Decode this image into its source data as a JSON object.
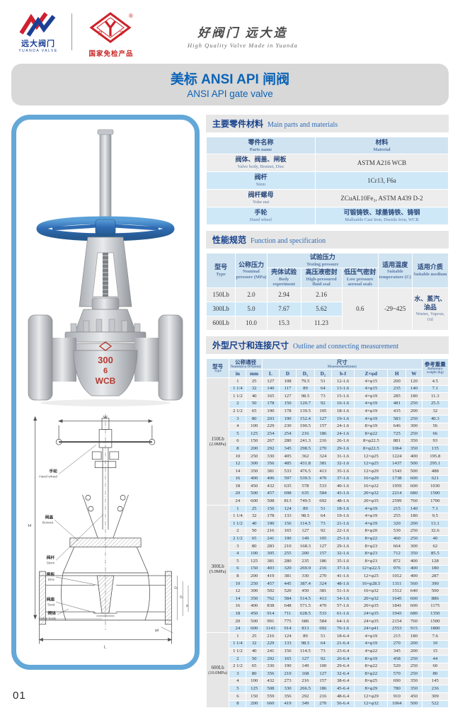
{
  "colors": {
    "panel_border": "#64a8d8",
    "accent_blue": "#0b63b6",
    "brand_red": "#cc2229",
    "navy": "#16418c",
    "table_header_blue": "#cfe3f1",
    "row_blue": "#cfe8f8",
    "row_grey": "#ededed"
  },
  "page": {
    "number": "01"
  },
  "header": {
    "yuanda_logo": {
      "name_cn": "远大阀门",
      "name_en": "YUANDA VALVE"
    },
    "trademark": {
      "registered": "®",
      "left_char": "兑",
      "right_char": "宇",
      "badge": "国家免检产品"
    },
    "slogan_cn": "好阀门 远大造",
    "slogan_en": "High Quality Valve Made in Yuanda"
  },
  "title": {
    "cn": "美标 ANSI API 闸阀",
    "en": "ANSI API gate valve"
  },
  "photo": {
    "marking_line1": "300",
    "marking_line2": "6",
    "marking_line3": "WCB",
    "yoke_mark1": "6",
    "yoke_mark2": "WCB"
  },
  "drawing": {
    "labels": [
      {
        "cn": "手轮",
        "en": "Hand wheel"
      },
      {
        "cn": "阀盖",
        "en": "Bonnet"
      },
      {
        "cn": "阀杆",
        "en": "Stem"
      },
      {
        "cn": "闸板",
        "en": "Disc"
      },
      {
        "cn": "阀座",
        "en": "Seat"
      },
      {
        "cn": "阀体",
        "en": "Valve body"
      }
    ],
    "dims": {
      "h": "H",
      "w": "W",
      "l": "L",
      "d": "D",
      "d1": "D₁",
      "d2": "D₂",
      "phid": "φd"
    }
  },
  "sections": {
    "materials": {
      "cn": "主要零件材料",
      "en": "Main parts and materials"
    },
    "spec": {
      "cn": "性能规范",
      "en": "Function and specification"
    },
    "outline": {
      "cn": "外型尺寸和连接尺寸",
      "en": "Outline and connecting measurement"
    }
  },
  "materials_table": {
    "part_header_cn": "零件名称",
    "part_header_en": "Parts name",
    "mat_header_cn": "材料",
    "mat_header_en": "Material",
    "rows": [
      {
        "part_cn": "阀体、阀盖、闸板",
        "part_en": "Valve body, Bonnet, Disc",
        "mat_cn": "ASTM A216 WCB",
        "mat_en": ""
      },
      {
        "part_cn": "阀杆",
        "part_en": "Stem",
        "mat_cn": "1Cr13, F6a",
        "mat_en": ""
      },
      {
        "part_cn": "阀杆螺母",
        "part_en": "Yoke nut",
        "mat_cn": "ZCuAL10Fe₃, ASTM A439 D-2",
        "mat_en": ""
      },
      {
        "part_cn": "手轮",
        "part_en": "Hand wheel",
        "mat_cn": "可锻铸铁、球墨铸铁、铸钢",
        "mat_en": "Malleable Cast Iron, Ductile Iron, WCB"
      }
    ]
  },
  "spec_table": {
    "type_cn": "型号",
    "type_en": "Type",
    "pn_cn": "公称压力",
    "pn_en": "Nominal pressure (MPa)",
    "test_cn": "试验压力",
    "test_en": "Testing pressure",
    "body_cn": "壳体试验",
    "body_en": "Body experiment",
    "high_cn": "高压液密封",
    "high_en": "High-pressured fluid seal",
    "low_cn": "低压气密封",
    "low_en": "Low pressure aerosol seals",
    "temp_cn": "适用温度",
    "temp_en": "Suitable temperature (C)",
    "medium_cn": "适用介质",
    "medium_en": "Suitable medium",
    "rows": [
      {
        "type": "150Lb",
        "pn": "2.0",
        "body": "2.94",
        "high": "2.16"
      },
      {
        "type": "300Lb",
        "pn": "5.0",
        "body": "7.67",
        "high": "5.62"
      },
      {
        "type": "600Lb",
        "pn": "10.0",
        "body": "15.3",
        "high": "11.23"
      }
    ],
    "low_pressure": "0.6",
    "temperature": "-29~425",
    "medium_value_cn": "水、蒸汽、油品",
    "medium_value_en": "Warter, Vapour, Oil"
  },
  "outline_table": {
    "type_cn": "型号",
    "type_en": "Type",
    "dn_cn": "公称通径",
    "dn_en": "Nominal φ DN(mm)",
    "meas_cn": "尺寸",
    "meas_en": "Measurement(mm)",
    "wt_cn": "参考重量",
    "wt_en": "Reference weight (kg)",
    "cols": [
      "in",
      "mm",
      "L",
      "D",
      "D₁",
      "D₂",
      "b-f",
      "Z×φd",
      "H",
      "W"
    ],
    "sections": [
      {
        "type": "150Lb",
        "mpa": "(2.0MPa)",
        "rows": [
          [
            "1",
            "25",
            "127",
            "108",
            "79.5",
            "51",
            "12-1.6",
            "4×φ15",
            "200",
            "120",
            "4.5"
          ],
          [
            "1 1/4",
            "32",
            "140",
            "117",
            "89",
            "64",
            "13-1.6",
            "4×φ15",
            "235",
            "140",
            "7.1"
          ],
          [
            "1 1/2",
            "40",
            "165",
            "127",
            "98.5",
            "73",
            "15-1.6",
            "4×φ19",
            "285",
            "180",
            "11.3"
          ],
          [
            "2",
            "50",
            "178",
            "150",
            "120.7",
            "92",
            "16-1.6",
            "4×φ19",
            "481",
            "250",
            "25.5"
          ],
          [
            "2 1/2",
            "65",
            "190",
            "178",
            "139.5",
            "105",
            "18-1.6",
            "4×φ19",
            "435",
            "200",
            "32"
          ],
          [
            "3",
            "80",
            "203",
            "190",
            "152.4",
            "127",
            "19-1.6",
            "4×φ19",
            "583",
            "250",
            "40.3"
          ],
          [
            "4",
            "100",
            "229",
            "230",
            "190.5",
            "157",
            "24-1.6",
            "8×φ19",
            "646",
            "300",
            "56"
          ],
          [
            "5",
            "125",
            "254",
            "254",
            "216",
            "186",
            "24-1.6",
            "8×φ22",
            "725",
            "250",
            "66"
          ],
          [
            "6",
            "150",
            "267",
            "280",
            "241.3",
            "216",
            "26-1.6",
            "8×φ22.5",
            "881",
            "350",
            "93"
          ],
          [
            "8",
            "200",
            "292",
            "345",
            "298.5",
            "270",
            "29-1.6",
            "8×φ22.5",
            "1064",
            "350",
            "135"
          ],
          [
            "10",
            "250",
            "330",
            "405",
            "362",
            "324",
            "31-1.6",
            "12×φ25",
            "1224",
            "400",
            "195.8"
          ],
          [
            "12",
            "300",
            "356",
            "485",
            "431.8",
            "381",
            "32-1.6",
            "12×φ25",
            "1437",
            "500",
            "295.1"
          ],
          [
            "14",
            "350",
            "381",
            "533",
            "476.5",
            "413",
            "35-1.6",
            "12×φ29",
            "1543",
            "500",
            "488"
          ],
          [
            "16",
            "400",
            "406",
            "597",
            "539.5",
            "470",
            "37-1.6",
            "16×φ29",
            "1738",
            "600",
            "621"
          ],
          [
            "18",
            "450",
            "432",
            "635",
            "578",
            "533",
            "40-1.6",
            "16×φ32",
            "1959",
            "600",
            "1030"
          ],
          [
            "20",
            "500",
            "457",
            "698",
            "635",
            "584",
            "43-1.6",
            "20×φ32",
            "2214",
            "680",
            "1500"
          ],
          [
            "24",
            "600",
            "508",
            "813",
            "749.5",
            "692",
            "48-1.6",
            "20×φ35",
            "2599",
            "760",
            "1700"
          ]
        ]
      },
      {
        "type": "300Lb",
        "mpa": "(5.0MPa)",
        "rows": [
          [
            "1",
            "25",
            "156",
            "124",
            "89",
            "51",
            "18-1.6",
            "4×φ19",
            "215",
            "140",
            "7.1"
          ],
          [
            "1 1/4",
            "32",
            "178",
            "133",
            "98.5",
            "64",
            "19-1.6",
            "4×φ19",
            "255",
            "180",
            "9.5"
          ],
          [
            "1 1/2",
            "40",
            "190",
            "156",
            "114.5",
            "73",
            "21-1.6",
            "4×φ19",
            "320",
            "200",
            "13.1"
          ],
          [
            "2",
            "50",
            "216",
            "165",
            "127",
            "92",
            "22-1.6",
            "8×φ20",
            "530",
            "250",
            "32.6"
          ],
          [
            "2 1/2",
            "65",
            "241",
            "190",
            "149",
            "105",
            "25-1.6",
            "8×φ22",
            "460",
            "250",
            "40"
          ],
          [
            "3",
            "80",
            "283",
            "210",
            "168.3",
            "127",
            "29-1.6",
            "8×φ23",
            "664",
            "300",
            "62"
          ],
          [
            "4",
            "100",
            "305",
            "255",
            "200",
            "157",
            "32-1.6",
            "8×φ23",
            "712",
            "350",
            "85.5"
          ],
          [
            "5",
            "125",
            "381",
            "280",
            "235",
            "186",
            "35-1.6",
            "8×φ23",
            "872",
            "400",
            "128"
          ],
          [
            "6",
            "150",
            "403",
            "320",
            "269.9",
            "216",
            "37-1.6",
            "12×φ22.5",
            "976",
            "400",
            "180"
          ],
          [
            "8",
            "200",
            "419",
            "381",
            "330",
            "270",
            "41-1.6",
            "12×φ25",
            "1012",
            "400",
            "287"
          ],
          [
            "10",
            "250",
            "457",
            "445",
            "387.4",
            "324",
            "48-1.6",
            "16×φ28.5",
            "1311",
            "560",
            "390"
          ],
          [
            "12",
            "300",
            "502",
            "520",
            "450",
            "381",
            "51-1.6",
            "16×φ32",
            "1512",
            "640",
            "500"
          ],
          [
            "14",
            "350",
            "762",
            "584",
            "514.5",
            "413",
            "54-1.6",
            "20×φ32",
            "1645",
            "600",
            "886"
          ],
          [
            "16",
            "400",
            "838",
            "648",
            "571.5",
            "470",
            "57-1.6",
            "20×φ35",
            "1841",
            "600",
            "1175"
          ],
          [
            "18",
            "450",
            "914",
            "711",
            "628.5",
            "533",
            "61-1.6",
            "24×φ35",
            "1943",
            "680",
            "1350"
          ],
          [
            "20",
            "500",
            "991",
            "775",
            "686",
            "584",
            "64-1.6",
            "24×φ35",
            "2154",
            "760",
            "1500"
          ],
          [
            "24",
            "600",
            "1143",
            "914",
            "813",
            "692",
            "70-1.6",
            "24×φ41",
            "2553",
            "915",
            "1800"
          ]
        ]
      },
      {
        "type": "600Lb",
        "mpa": "(10.0MPa)",
        "rows": [
          [
            "1",
            "25",
            "216",
            "124",
            "89",
            "51",
            "18-6.4",
            "4×φ19",
            "215",
            "180",
            "7.6"
          ],
          [
            "1 1/4",
            "32",
            "229",
            "133",
            "98.5",
            "64",
            "21-6.4",
            "4×φ19",
            "270",
            "200",
            "10"
          ],
          [
            "1 1/2",
            "40",
            "241",
            "156",
            "114.5",
            "73",
            "23-6.4",
            "4×φ22",
            "345",
            "200",
            "15"
          ],
          [
            "2",
            "50",
            "292",
            "165",
            "127",
            "92",
            "26-6.4",
            "8×φ19",
            "458",
            "250",
            "44"
          ],
          [
            "2 1/2",
            "65",
            "330",
            "190",
            "149",
            "100",
            "29-6.4",
            "8×φ22",
            "520",
            "250",
            "60"
          ],
          [
            "3",
            "80",
            "356",
            "210",
            "168",
            "127",
            "32-6.4",
            "8×φ22",
            "570",
            "250",
            "80"
          ],
          [
            "4",
            "100",
            "432",
            "273",
            "216",
            "157",
            "38-6.4",
            "8×φ25",
            "690",
            "350",
            "145"
          ],
          [
            "5",
            "125",
            "508",
            "330",
            "266.5",
            "186",
            "45-6.4",
            "8×φ29",
            "780",
            "350",
            "236"
          ],
          [
            "6",
            "150",
            "559",
            "356",
            "292",
            "216",
            "48-6.4",
            "12×φ29",
            "910",
            "450",
            "309"
          ],
          [
            "8",
            "200",
            "660",
            "419",
            "349",
            "270",
            "56-6.4",
            "12×φ32",
            "1064",
            "500",
            "522"
          ]
        ]
      }
    ]
  }
}
